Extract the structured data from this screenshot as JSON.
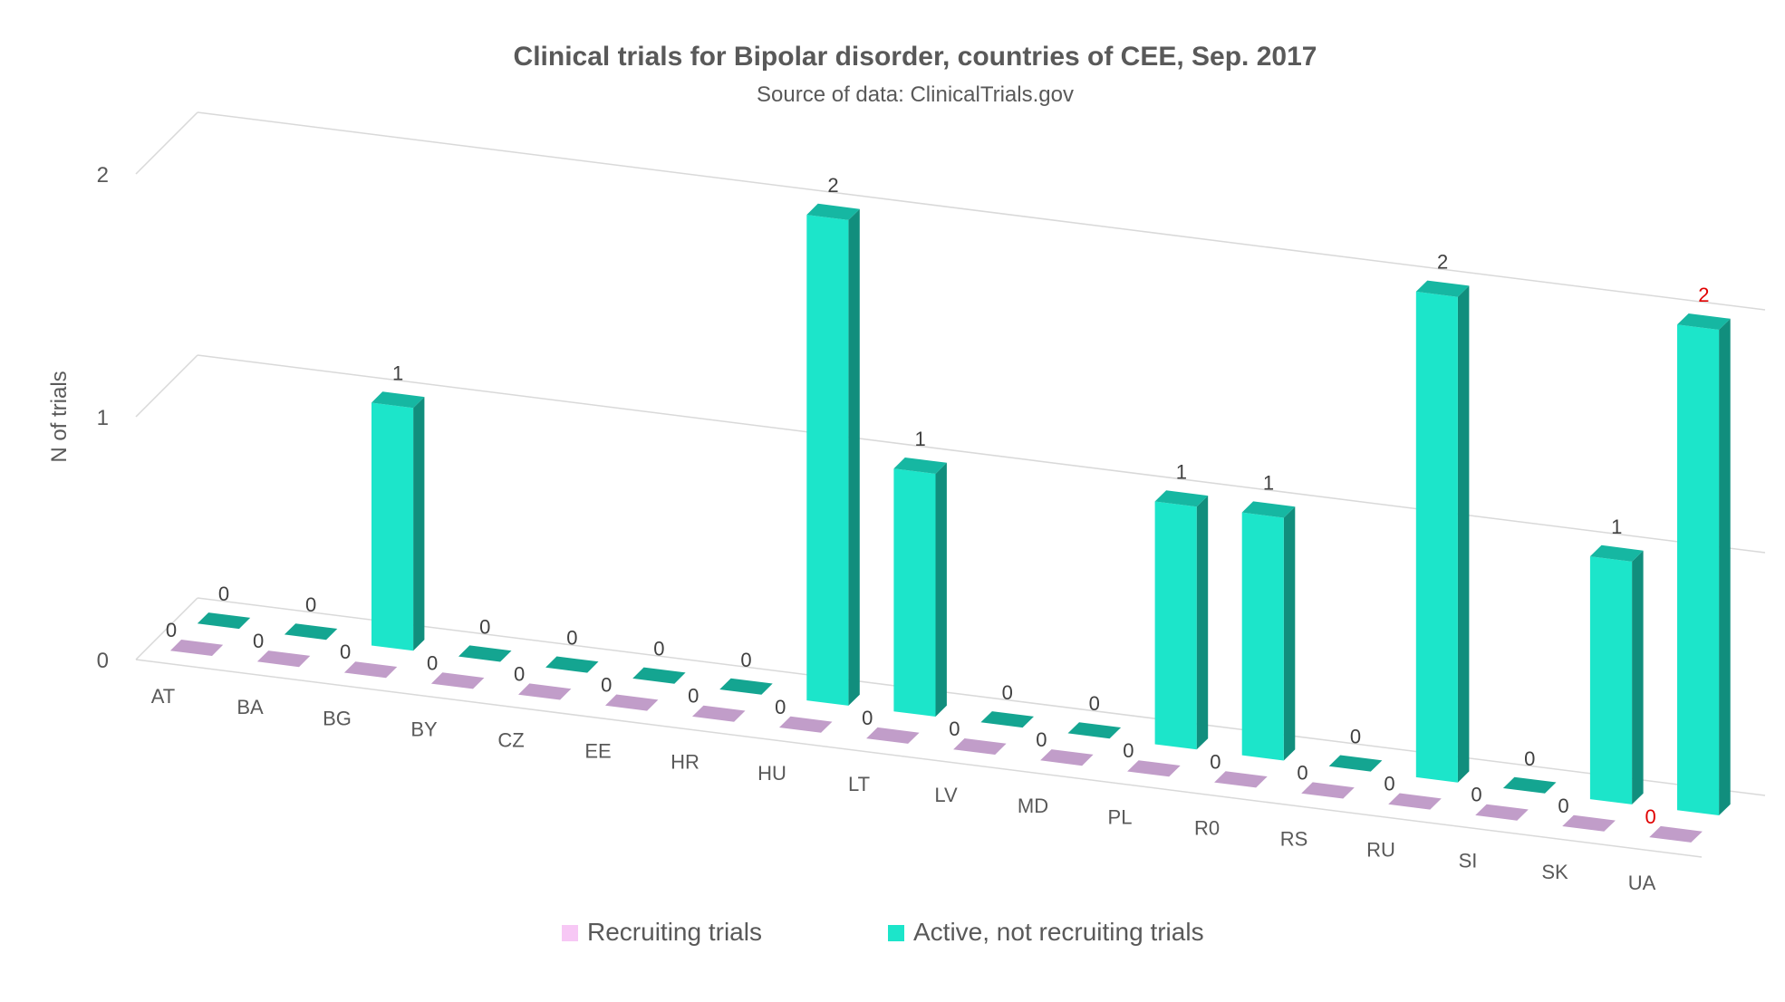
{
  "chart_data": {
    "type": "bar",
    "title": "Clinical trials for Bipolar disorder, countries of CEE, Sep. 2017",
    "subtitle": "Source of data: ClinicalTrials.gov",
    "ylabel": "N of trials",
    "xlabel": "",
    "ylim": [
      0,
      2
    ],
    "y_ticks": [
      "0",
      "1",
      "2"
    ],
    "categories": [
      "AT",
      "BA",
      "BG",
      "BY",
      "CZ",
      "EE",
      "HR",
      "HU",
      "LT",
      "LV",
      "MD",
      "PL",
      "R0",
      "RS",
      "RU",
      "SI",
      "SK",
      "UA"
    ],
    "series": [
      {
        "name": "Recruiting trials",
        "color": "#c19dc9",
        "legend_color": "#f7c8f5",
        "values": [
          0,
          0,
          0,
          0,
          0,
          0,
          0,
          0,
          0,
          0,
          0,
          0,
          0,
          0,
          0,
          0,
          0,
          0
        ]
      },
      {
        "name": "Active, not recruiting trials",
        "color": "#1ce5ca",
        "legend_color": "#1ce5ca",
        "values": [
          0,
          0,
          1,
          0,
          0,
          0,
          0,
          2,
          1,
          0,
          0,
          1,
          1,
          0,
          2,
          0,
          1,
          2
        ]
      }
    ],
    "highlight_category": "UA",
    "highlight_color": "#e00000",
    "grid": true,
    "legend_position": "bottom"
  }
}
